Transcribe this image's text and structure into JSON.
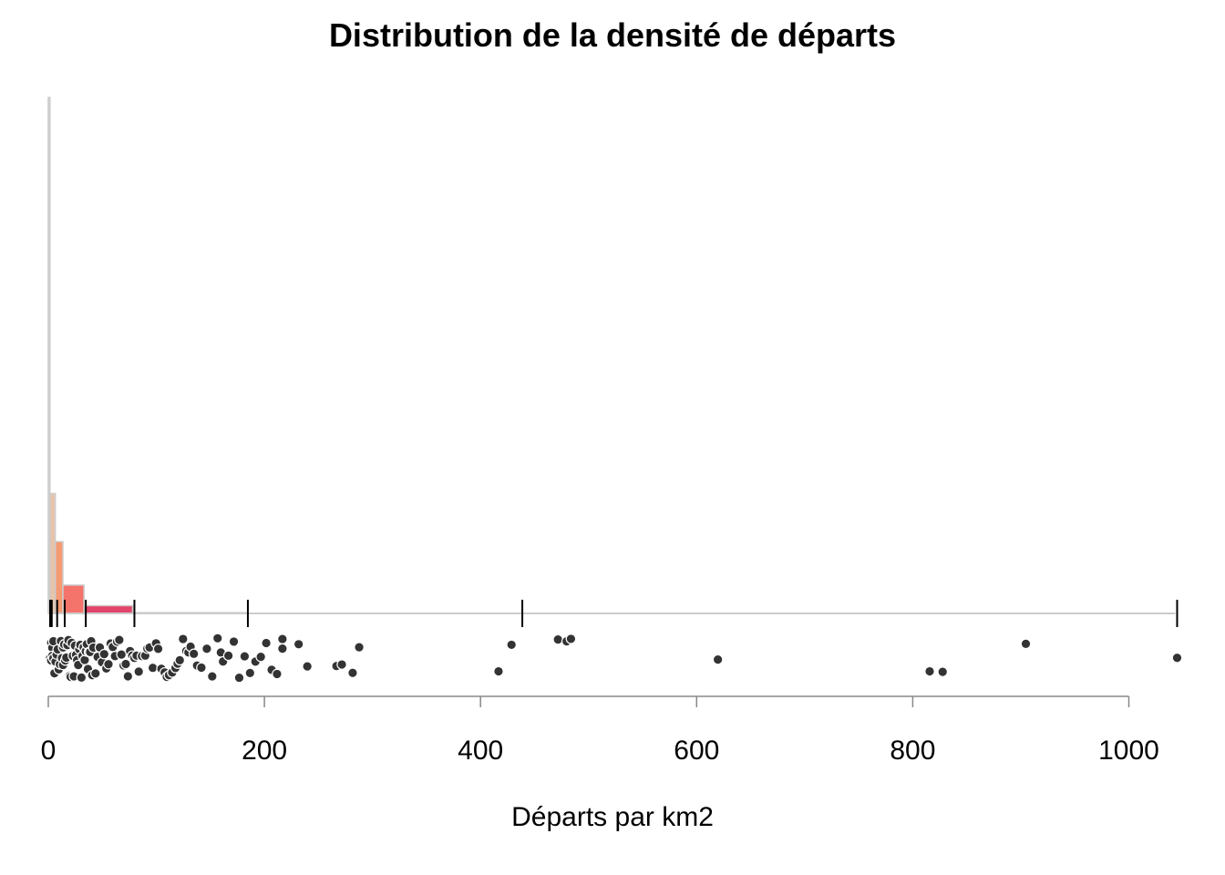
{
  "chart_data": {
    "type": "histogram",
    "title": "Distribution de la densité de départs",
    "xlabel": "Départs par km2",
    "ylabel": "",
    "xlim": [
      0,
      1040
    ],
    "x_ticks": [
      0,
      200,
      400,
      600,
      800,
      1000
    ],
    "grid": false,
    "legend": "none",
    "class_breaks": [
      0,
      1.5,
      6.5,
      13.5,
      33,
      78,
      183,
      437,
      1043
    ],
    "bars": [
      {
        "from": 0,
        "to": 1.5,
        "density": 0.133,
        "color": "#d3d3d3"
      },
      {
        "from": 1.5,
        "to": 6.5,
        "density": 0.0309,
        "color": "#e6c4ab"
      },
      {
        "from": 6.5,
        "to": 13.5,
        "density": 0.0185,
        "color": "#f59a72"
      },
      {
        "from": 13.5,
        "to": 33,
        "density": 0.0073,
        "color": "#f4736b"
      },
      {
        "from": 33,
        "to": 78,
        "density": 0.002,
        "color": "#e2446a"
      },
      {
        "from": 78,
        "to": 183,
        "density": 0.0002,
        "color": "#d3d3d3"
      },
      {
        "from": 183,
        "to": 437,
        "density": 0.0,
        "color": "#d3d3d3"
      },
      {
        "from": 437,
        "to": 1043,
        "density": 0.0,
        "color": "#d3d3d3"
      }
    ],
    "strip_points": [
      0,
      1,
      1,
      2,
      2,
      3,
      3,
      4,
      5,
      6,
      7,
      8,
      9,
      10,
      11,
      12,
      12,
      13,
      14,
      15,
      16,
      17,
      18,
      19,
      20,
      21,
      22,
      23,
      24,
      25,
      26,
      27,
      28,
      29,
      30,
      31,
      32,
      33,
      34,
      35,
      36,
      37,
      38,
      39,
      40,
      42,
      44,
      46,
      48,
      50,
      52,
      54,
      56,
      58,
      60,
      62,
      64,
      66,
      68,
      70,
      72,
      74,
      76,
      78,
      80,
      82,
      85,
      88,
      90,
      92,
      95,
      98,
      100,
      103,
      106,
      108,
      110,
      113,
      116,
      118,
      120,
      123,
      126,
      128,
      130,
      133,
      136,
      140,
      145,
      150,
      155,
      158,
      160,
      165,
      170,
      175,
      180,
      185,
      190,
      195,
      200,
      205,
      210,
      215,
      215,
      230,
      238,
      265,
      270,
      280,
      286,
      415,
      427,
      470,
      478,
      482,
      618,
      814,
      826,
      903,
      1043
    ],
    "point_color": "#333333"
  }
}
